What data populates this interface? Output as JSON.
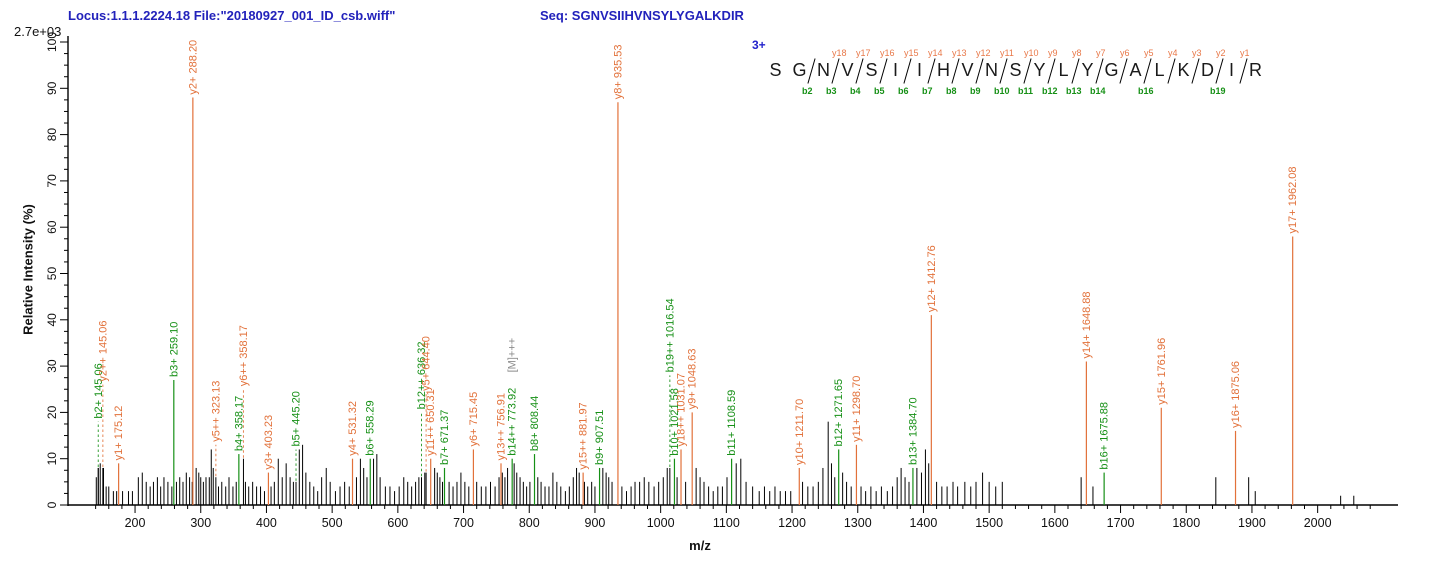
{
  "header": {
    "locus_file": "Locus:1.1.1.2224.18 File:\"20180927_001_ID_csb.wiff\"",
    "seq_label": "Seq: SGNVSIIHVNSYLYGALKDIR",
    "max_intensity": "2.7e+03"
  },
  "axes": {
    "y_title": "Relative  Intensity (%)",
    "x_title": "m/z"
  },
  "colors": {
    "y_ion": "#e2713a",
    "b_ion": "#169016",
    "precursor": "#8c8c8c",
    "peak": "#000000",
    "header_blue": "#2222bb"
  },
  "sequence_panel": {
    "charge": "3+",
    "residues": [
      "S",
      "G",
      "N",
      "V",
      "S",
      "I",
      "I",
      "H",
      "V",
      "N",
      "S",
      "Y",
      "L",
      "Y",
      "G",
      "A",
      "L",
      "K",
      "D",
      "I",
      "R"
    ],
    "gaps": [
      {
        "y": "",
        "b": ""
      },
      {
        "y": "",
        "b": "b2"
      },
      {
        "y": "y18",
        "b": "b3"
      },
      {
        "y": "y17",
        "b": "b4"
      },
      {
        "y": "y16",
        "b": "b5"
      },
      {
        "y": "y15",
        "b": "b6"
      },
      {
        "y": "y14",
        "b": "b7"
      },
      {
        "y": "y13",
        "b": "b8"
      },
      {
        "y": "y12",
        "b": "b9"
      },
      {
        "y": "y11",
        "b": "b10"
      },
      {
        "y": "y10",
        "b": "b11"
      },
      {
        "y": "y9",
        "b": "b12"
      },
      {
        "y": "y8",
        "b": "b13"
      },
      {
        "y": "y7",
        "b": "b14"
      },
      {
        "y": "y6",
        "b": ""
      },
      {
        "y": "y5",
        "b": "b16"
      },
      {
        "y": "y4",
        "b": ""
      },
      {
        "y": "y3",
        "b": ""
      },
      {
        "y": "y2",
        "b": "b19"
      },
      {
        "y": "y1",
        "b": ""
      }
    ]
  },
  "chart_data": {
    "type": "bar",
    "title": "MS/MS fragmentation spectrum",
    "xlabel": "m/z",
    "ylabel": "Relative  Intensity (%)",
    "xlim": [
      140,
      2080
    ],
    "ylim": [
      0,
      100
    ],
    "x_major_step": 100,
    "x_minor_step": 20,
    "y_major_step": 10,
    "y_minor_step": 2.5,
    "x_tick_labels": [
      200,
      300,
      400,
      500,
      600,
      700,
      800,
      900,
      1000,
      1100,
      1200,
      1300,
      1400,
      1500,
      1600,
      1700,
      1800,
      1900,
      2000
    ],
    "y_tick_labels": [
      0,
      10,
      20,
      30,
      40,
      50,
      60,
      70,
      80,
      90,
      100
    ],
    "labeled_peaks": [
      {
        "label": "b2+ 145.06",
        "mz": 144,
        "ion": "b",
        "peak_pct": 8,
        "line_top_pct": 18,
        "dashed": true
      },
      {
        "label": "y2++ 145.06",
        "mz": 151,
        "ion": "y",
        "peak_pct": 8,
        "line_top_pct": 26,
        "dashed": true
      },
      {
        "label": "y1+ 175.12",
        "mz": 175,
        "ion": "y",
        "peak_pct": 9,
        "line_top_pct": 9,
        "dashed": false
      },
      {
        "label": "b3+ 259.10",
        "mz": 259,
        "ion": "b",
        "peak_pct": 27,
        "line_top_pct": 27,
        "dashed": false
      },
      {
        "label": "y2+ 288.20",
        "mz": 288,
        "ion": "y",
        "peak_pct": 88,
        "line_top_pct": 88,
        "dashed": false
      },
      {
        "label": "y5++ 323.13",
        "mz": 323,
        "ion": "y",
        "peak_pct": 6,
        "line_top_pct": 13,
        "dashed": true
      },
      {
        "label": "b4+ 358.17",
        "mz": 358,
        "ion": "b",
        "peak_pct": 11,
        "line_top_pct": 11,
        "dashed": false
      },
      {
        "label": "y6++ 358.17",
        "mz": 365,
        "ion": "y",
        "peak_pct": 10,
        "line_top_pct": 25,
        "dashed": true
      },
      {
        "label": "y3+ 403.23",
        "mz": 403,
        "ion": "y",
        "peak_pct": 7,
        "line_top_pct": 7,
        "dashed": false
      },
      {
        "label": "b5+ 445.20",
        "mz": 445,
        "ion": "b",
        "peak_pct": 5,
        "line_top_pct": 12,
        "dashed": true
      },
      {
        "label": "y4+ 531.32",
        "mz": 531,
        "ion": "y",
        "peak_pct": 10,
        "line_top_pct": 10,
        "dashed": false
      },
      {
        "label": "b6+ 558.29",
        "mz": 558,
        "ion": "b",
        "peak_pct": 10,
        "line_top_pct": 10,
        "dashed": false
      },
      {
        "label": "b12++ 636.32",
        "mz": 636,
        "ion": "b",
        "peak_pct": 6,
        "line_top_pct": 20,
        "dashed": true
      },
      {
        "label": "y5+ 644.40",
        "mz": 643,
        "ion": "y",
        "peak_pct": 7,
        "line_top_pct": 24,
        "dashed": true
      },
      {
        "label": "y11++ 650.31",
        "mz": 650,
        "ion": "y",
        "peak_pct": 10,
        "line_top_pct": 10,
        "dashed": false
      },
      {
        "label": "b7+ 671.37",
        "mz": 671,
        "ion": "b",
        "peak_pct": 8,
        "line_top_pct": 8,
        "dashed": false
      },
      {
        "label": "y6+ 715.45",
        "mz": 715,
        "ion": "y",
        "peak_pct": 12,
        "line_top_pct": 12,
        "dashed": false
      },
      {
        "label": "y13++ 756.91",
        "mz": 757,
        "ion": "y",
        "peak_pct": 9,
        "line_top_pct": 9,
        "dashed": false
      },
      {
        "label": "b14++ 773.92",
        "mz": 774,
        "ion": "b",
        "peak_pct": 10,
        "line_top_pct": 10,
        "dashed": false
      },
      {
        "label": "[M]+++",
        "mz": 774,
        "ion": "precursor",
        "peak_pct": 0,
        "line_top_pct": 28,
        "dashed": false,
        "text_only": true
      },
      {
        "label": "b8+ 808.44",
        "mz": 808,
        "ion": "b",
        "peak_pct": 11,
        "line_top_pct": 11,
        "dashed": false
      },
      {
        "label": "y15++ 881.97",
        "mz": 882,
        "ion": "y",
        "peak_pct": 7,
        "line_top_pct": 7,
        "dashed": false
      },
      {
        "label": "b9+ 907.51",
        "mz": 907,
        "ion": "b",
        "peak_pct": 8,
        "line_top_pct": 8,
        "dashed": false
      },
      {
        "label": "y8+ 935.53",
        "mz": 935,
        "ion": "y",
        "peak_pct": 87,
        "line_top_pct": 87,
        "dashed": false
      },
      {
        "label": "b19++ 1016.54",
        "mz": 1014,
        "ion": "b",
        "peak_pct": 8,
        "line_top_pct": 28,
        "dashed": true
      },
      {
        "label": "b10+ 1021.58",
        "mz": 1021,
        "ion": "b",
        "peak_pct": 10,
        "line_top_pct": 10,
        "dashed": false
      },
      {
        "label": "y18++ 1031.07",
        "mz": 1031,
        "ion": "y",
        "peak_pct": 12,
        "line_top_pct": 12,
        "dashed": false
      },
      {
        "label": "y9+ 1048.63",
        "mz": 1048,
        "ion": "y",
        "peak_pct": 20,
        "line_top_pct": 20,
        "dashed": false
      },
      {
        "label": "b11+ 1108.59",
        "mz": 1108,
        "ion": "b",
        "peak_pct": 10,
        "line_top_pct": 10,
        "dashed": false
      },
      {
        "label": "y10+ 1211.70",
        "mz": 1211,
        "ion": "y",
        "peak_pct": 8,
        "line_top_pct": 8,
        "dashed": false
      },
      {
        "label": "b12+ 1271.65",
        "mz": 1271,
        "ion": "b",
        "peak_pct": 12,
        "line_top_pct": 12,
        "dashed": false
      },
      {
        "label": "y11+ 1298.70",
        "mz": 1298,
        "ion": "y",
        "peak_pct": 13,
        "line_top_pct": 13,
        "dashed": false
      },
      {
        "label": "b13+ 1384.70",
        "mz": 1384,
        "ion": "b",
        "peak_pct": 8,
        "line_top_pct": 8,
        "dashed": false
      },
      {
        "label": "y12+ 1412.76",
        "mz": 1412,
        "ion": "y",
        "peak_pct": 41,
        "line_top_pct": 41,
        "dashed": false
      },
      {
        "label": "y14+ 1648.88",
        "mz": 1648,
        "ion": "y",
        "peak_pct": 31,
        "line_top_pct": 31,
        "dashed": false
      },
      {
        "label": "b16+ 1675.88",
        "mz": 1675,
        "ion": "b",
        "peak_pct": 7,
        "line_top_pct": 7,
        "dashed": false
      },
      {
        "label": "y15+ 1761.96",
        "mz": 1762,
        "ion": "y",
        "peak_pct": 21,
        "line_top_pct": 21,
        "dashed": false
      },
      {
        "label": "y16+ 1875.06",
        "mz": 1875,
        "ion": "y",
        "peak_pct": 16,
        "line_top_pct": 16,
        "dashed": false
      },
      {
        "label": "y17+ 1962.08",
        "mz": 1962,
        "ion": "y",
        "peak_pct": 58,
        "line_top_pct": 58,
        "dashed": false
      }
    ],
    "unlabeled_peaks": [
      [
        141,
        6
      ],
      [
        144,
        8
      ],
      [
        147,
        9
      ],
      [
        152,
        8
      ],
      [
        156,
        4
      ],
      [
        160,
        4
      ],
      [
        167,
        3
      ],
      [
        172,
        3
      ],
      [
        181,
        3
      ],
      [
        190,
        3
      ],
      [
        196,
        3
      ],
      [
        205,
        6
      ],
      [
        211,
        7
      ],
      [
        217,
        5
      ],
      [
        223,
        4
      ],
      [
        228,
        5
      ],
      [
        234,
        6
      ],
      [
        239,
        4
      ],
      [
        244,
        6
      ],
      [
        250,
        5
      ],
      [
        256,
        4
      ],
      [
        263,
        5
      ],
      [
        268,
        6
      ],
      [
        273,
        5
      ],
      [
        278,
        7
      ],
      [
        283,
        6
      ],
      [
        287,
        5
      ],
      [
        293,
        8
      ],
      [
        297,
        7
      ],
      [
        300,
        6
      ],
      [
        304,
        5
      ],
      [
        308,
        6
      ],
      [
        313,
        6
      ],
      [
        316,
        12
      ],
      [
        319,
        8
      ],
      [
        327,
        4
      ],
      [
        332,
        5
      ],
      [
        338,
        4
      ],
      [
        343,
        6
      ],
      [
        349,
        4
      ],
      [
        354,
        5
      ],
      [
        368,
        5
      ],
      [
        373,
        4
      ],
      [
        379,
        5
      ],
      [
        385,
        4
      ],
      [
        391,
        4
      ],
      [
        397,
        3
      ],
      [
        407,
        4
      ],
      [
        412,
        5
      ],
      [
        418,
        10
      ],
      [
        424,
        6
      ],
      [
        430,
        9
      ],
      [
        436,
        6
      ],
      [
        441,
        5
      ],
      [
        450,
        12
      ],
      [
        455,
        13
      ],
      [
        460,
        7
      ],
      [
        466,
        5
      ],
      [
        472,
        4
      ],
      [
        478,
        3
      ],
      [
        484,
        6
      ],
      [
        491,
        8
      ],
      [
        497,
        5
      ],
      [
        505,
        3
      ],
      [
        512,
        4
      ],
      [
        519,
        5
      ],
      [
        526,
        4
      ],
      [
        537,
        6
      ],
      [
        543,
        10
      ],
      [
        548,
        8
      ],
      [
        553,
        6
      ],
      [
        563,
        10
      ],
      [
        568,
        11
      ],
      [
        573,
        6
      ],
      [
        581,
        4
      ],
      [
        588,
        4
      ],
      [
        595,
        3
      ],
      [
        602,
        4
      ],
      [
        609,
        6
      ],
      [
        615,
        5
      ],
      [
        621,
        4
      ],
      [
        627,
        5
      ],
      [
        632,
        6
      ],
      [
        641,
        7
      ],
      [
        656,
        8
      ],
      [
        660,
        7
      ],
      [
        664,
        6
      ],
      [
        668,
        5
      ],
      [
        678,
        5
      ],
      [
        684,
        4
      ],
      [
        690,
        5
      ],
      [
        696,
        7
      ],
      [
        702,
        5
      ],
      [
        708,
        4
      ],
      [
        720,
        5
      ],
      [
        727,
        4
      ],
      [
        734,
        4
      ],
      [
        741,
        5
      ],
      [
        748,
        4
      ],
      [
        754,
        6
      ],
      [
        759,
        7
      ],
      [
        763,
        6
      ],
      [
        767,
        8
      ],
      [
        777,
        9
      ],
      [
        781,
        7
      ],
      [
        786,
        6
      ],
      [
        791,
        5
      ],
      [
        796,
        4
      ],
      [
        801,
        5
      ],
      [
        813,
        6
      ],
      [
        818,
        5
      ],
      [
        824,
        4
      ],
      [
        830,
        4
      ],
      [
        836,
        7
      ],
      [
        842,
        5
      ],
      [
        848,
        4
      ],
      [
        855,
        3
      ],
      [
        861,
        4
      ],
      [
        867,
        6
      ],
      [
        872,
        8
      ],
      [
        876,
        7
      ],
      [
        884,
        5
      ],
      [
        889,
        4
      ],
      [
        895,
        5
      ],
      [
        900,
        4
      ],
      [
        912,
        8
      ],
      [
        917,
        7
      ],
      [
        921,
        6
      ],
      [
        926,
        5
      ],
      [
        941,
        4
      ],
      [
        948,
        3
      ],
      [
        955,
        4
      ],
      [
        961,
        5
      ],
      [
        968,
        5
      ],
      [
        975,
        6
      ],
      [
        982,
        5
      ],
      [
        990,
        4
      ],
      [
        997,
        5
      ],
      [
        1004,
        6
      ],
      [
        1010,
        8
      ],
      [
        1025,
        6
      ],
      [
        1038,
        5
      ],
      [
        1054,
        8
      ],
      [
        1060,
        6
      ],
      [
        1066,
        5
      ],
      [
        1073,
        4
      ],
      [
        1080,
        3
      ],
      [
        1087,
        4
      ],
      [
        1094,
        4
      ],
      [
        1101,
        6
      ],
      [
        1115,
        9
      ],
      [
        1122,
        10
      ],
      [
        1130,
        5
      ],
      [
        1140,
        4
      ],
      [
        1150,
        3
      ],
      [
        1158,
        4
      ],
      [
        1166,
        3
      ],
      [
        1174,
        4
      ],
      [
        1182,
        3
      ],
      [
        1190,
        3
      ],
      [
        1198,
        3
      ],
      [
        1216,
        5
      ],
      [
        1224,
        4
      ],
      [
        1232,
        4
      ],
      [
        1240,
        5
      ],
      [
        1247,
        8
      ],
      [
        1255,
        18
      ],
      [
        1260,
        9
      ],
      [
        1265,
        6
      ],
      [
        1277,
        7
      ],
      [
        1283,
        5
      ],
      [
        1290,
        4
      ],
      [
        1305,
        4
      ],
      [
        1312,
        3
      ],
      [
        1320,
        4
      ],
      [
        1328,
        3
      ],
      [
        1336,
        4
      ],
      [
        1345,
        3
      ],
      [
        1353,
        4
      ],
      [
        1360,
        6
      ],
      [
        1366,
        8
      ],
      [
        1372,
        6
      ],
      [
        1378,
        5
      ],
      [
        1390,
        8
      ],
      [
        1397,
        7
      ],
      [
        1403,
        12
      ],
      [
        1408,
        9
      ],
      [
        1420,
        5
      ],
      [
        1428,
        4
      ],
      [
        1436,
        4
      ],
      [
        1445,
        5
      ],
      [
        1452,
        4
      ],
      [
        1463,
        5
      ],
      [
        1472,
        4
      ],
      [
        1480,
        5
      ],
      [
        1490,
        7
      ],
      [
        1500,
        5
      ],
      [
        1510,
        4
      ],
      [
        1520,
        5
      ],
      [
        1640,
        6
      ],
      [
        1658,
        4
      ],
      [
        1845,
        6
      ],
      [
        1895,
        6
      ],
      [
        1905,
        3
      ],
      [
        2035,
        2
      ],
      [
        2055,
        2
      ]
    ]
  }
}
